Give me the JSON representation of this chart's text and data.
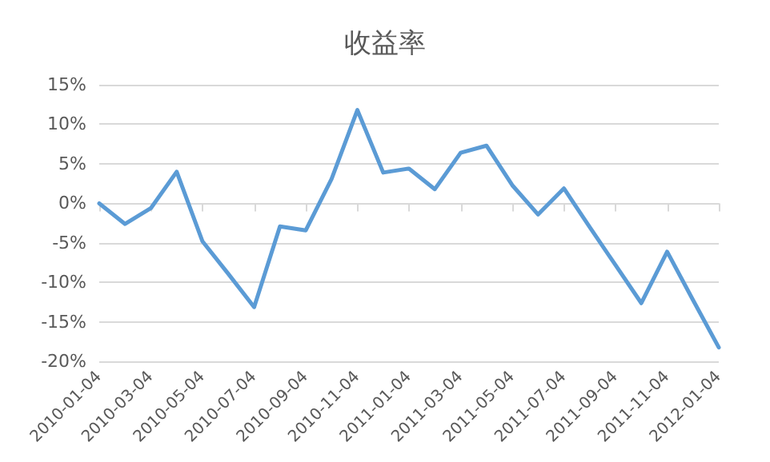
{
  "chart_data": {
    "type": "line",
    "title": "收益率",
    "categories": [
      "2010-01-04",
      null,
      "2010-03-04",
      null,
      "2010-05-04",
      null,
      "2010-07-04",
      null,
      "2010-09-04",
      null,
      "2010-11-04",
      null,
      "2011-01-04",
      null,
      "2011-03-04",
      null,
      "2011-05-04",
      null,
      "2011-07-04",
      null,
      "2011-09-04",
      null,
      "2011-11-04",
      null,
      "2012-01-04"
    ],
    "series": [
      {
        "color": "#5b9bd5",
        "values": [
          0,
          -2.6,
          -0.6,
          4.0,
          -4.8,
          -8.9,
          -13.1,
          -2.9,
          -3.4,
          3.1,
          11.8,
          3.9,
          4.4,
          1.8,
          6.4,
          7.3,
          2.3,
          -1.4,
          1.9,
          -3.0,
          -7.8,
          -12.6,
          -6.1,
          -12.2,
          -18.2
        ]
      }
    ],
    "ylim": [
      -20,
      15
    ],
    "yticks": [
      {
        "value": -20,
        "label": "-20%"
      },
      {
        "value": -15,
        "label": "-15%"
      },
      {
        "value": -10,
        "label": "-10%"
      },
      {
        "value": -5,
        "label": "-5%"
      },
      {
        "value": 0,
        "label": "0%"
      },
      {
        "value": 5,
        "label": "5%"
      },
      {
        "value": 10,
        "label": "10%"
      },
      {
        "value": 15,
        "label": "15%"
      }
    ],
    "grid": "y",
    "marker": "none",
    "line_style": "solid"
  }
}
